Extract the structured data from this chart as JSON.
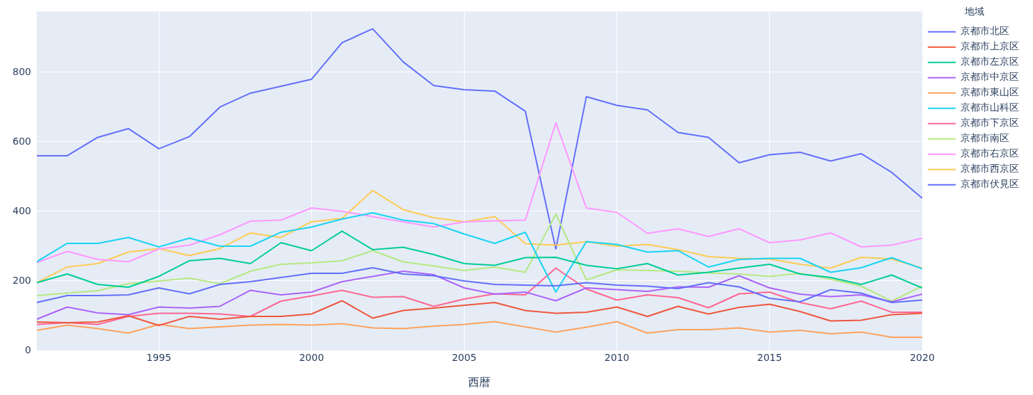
{
  "chart_data": {
    "type": "line",
    "xlabel": "西暦",
    "legend_title": "地域",
    "legend": "right",
    "grid": true,
    "x": [
      1991,
      1992,
      1993,
      1994,
      1995,
      1996,
      1997,
      1998,
      1999,
      2000,
      2001,
      2002,
      2003,
      2004,
      2005,
      2006,
      2007,
      2008,
      2009,
      2010,
      2011,
      2012,
      2013,
      2014,
      2015,
      2016,
      2017,
      2018,
      2019,
      2020
    ],
    "xlim": [
      1991,
      2020
    ],
    "xticks": [
      1995,
      2000,
      2005,
      2010,
      2015,
      2020
    ],
    "ylim": [
      0,
      975
    ],
    "yticks": [
      0,
      200,
      400,
      600,
      800
    ],
    "series": [
      {
        "name": "京都市北区",
        "color": "#636efa",
        "values": [
          138,
          158,
          158,
          160,
          180,
          163,
          190,
          198,
          210,
          222,
          222,
          238,
          220,
          215,
          200,
          190,
          188,
          186,
          195,
          188,
          185,
          178,
          195,
          183,
          150,
          140,
          175,
          165,
          138,
          145
        ]
      },
      {
        "name": "京都市上京区",
        "color": "#ef553b",
        "values": [
          82,
          80,
          82,
          100,
          72,
          98,
          90,
          98,
          98,
          105,
          143,
          93,
          115,
          122,
          130,
          138,
          115,
          107,
          110,
          125,
          98,
          127,
          105,
          124,
          133,
          112,
          85,
          87,
          103,
          107
        ]
      },
      {
        "name": "京都市左京区",
        "color": "#00cc96",
        "values": [
          195,
          220,
          190,
          182,
          213,
          258,
          265,
          250,
          310,
          287,
          343,
          290,
          297,
          276,
          250,
          245,
          267,
          268,
          245,
          235,
          250,
          217,
          225,
          237,
          248,
          220,
          210,
          190,
          217,
          180
        ]
      },
      {
        "name": "京都市中京区",
        "color": "#ab63fa",
        "values": [
          90,
          125,
          108,
          103,
          125,
          122,
          127,
          173,
          160,
          168,
          198,
          213,
          228,
          218,
          180,
          162,
          168,
          143,
          180,
          175,
          170,
          183,
          182,
          215,
          180,
          162,
          155,
          160,
          140,
          162
        ]
      },
      {
        "name": "京都市東山区",
        "color": "#ffa15a",
        "values": [
          58,
          73,
          63,
          50,
          75,
          63,
          68,
          73,
          75,
          73,
          77,
          65,
          63,
          70,
          75,
          83,
          68,
          53,
          67,
          83,
          50,
          60,
          60,
          65,
          53,
          58,
          48,
          53,
          38,
          38
        ]
      },
      {
        "name": "京都市山科区",
        "color": "#19d3f3",
        "values": [
          255,
          308,
          308,
          325,
          298,
          323,
          300,
          300,
          340,
          355,
          378,
          396,
          375,
          365,
          335,
          308,
          340,
          168,
          313,
          305,
          283,
          287,
          240,
          262,
          265,
          265,
          225,
          238,
          267,
          235
        ]
      },
      {
        "name": "京都市下京区",
        "color": "#ff6692",
        "values": [
          75,
          80,
          75,
          98,
          107,
          107,
          105,
          98,
          142,
          157,
          173,
          153,
          155,
          127,
          148,
          163,
          160,
          237,
          177,
          145,
          160,
          152,
          123,
          163,
          168,
          138,
          120,
          142,
          110,
          110
        ]
      },
      {
        "name": "京都市南区",
        "color": "#b6e880",
        "values": [
          158,
          165,
          172,
          192,
          200,
          208,
          192,
          228,
          248,
          252,
          258,
          287,
          255,
          243,
          230,
          240,
          225,
          392,
          203,
          232,
          230,
          228,
          223,
          220,
          213,
          222,
          205,
          185,
          142,
          185
        ]
      },
      {
        "name": "京都市右京区",
        "color": "#ff97ff",
        "values": [
          253,
          285,
          262,
          255,
          292,
          303,
          333,
          372,
          375,
          410,
          400,
          385,
          370,
          355,
          370,
          373,
          375,
          655,
          410,
          397,
          337,
          350,
          328,
          350,
          310,
          318,
          338,
          298,
          303,
          323
        ]
      },
      {
        "name": "京都市西京区",
        "color": "#fecb52",
        "values": [
          195,
          240,
          250,
          283,
          293,
          273,
          293,
          338,
          325,
          370,
          380,
          460,
          405,
          382,
          370,
          385,
          307,
          303,
          313,
          300,
          305,
          290,
          270,
          265,
          263,
          248,
          237,
          268,
          263,
          237
        ]
      },
      {
        "name": "京都市伏見区",
        "color": "#636efa",
        "values": [
          560,
          560,
          613,
          638,
          580,
          615,
          700,
          740,
          760,
          780,
          885,
          925,
          830,
          762,
          750,
          746,
          688,
          292,
          730,
          705,
          692,
          627,
          613,
          540,
          563,
          570,
          545,
          566,
          512,
          438
        ]
      }
    ]
  }
}
